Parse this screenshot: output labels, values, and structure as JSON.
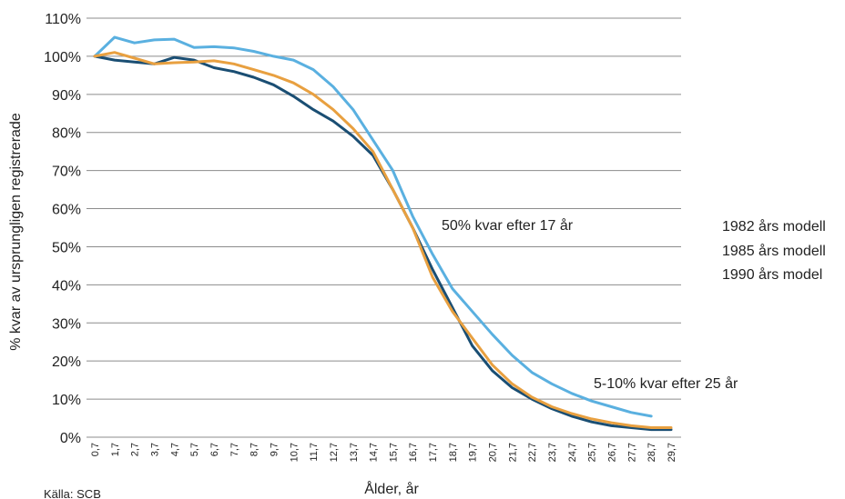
{
  "chart_data": {
    "type": "line",
    "title": "",
    "xlabel": "Ålder, år",
    "ylabel": "% kvar av ursprungligen registrerade",
    "ylim": [
      0,
      110
    ],
    "yticks": [
      "0%",
      "10%",
      "20%",
      "30%",
      "40%",
      "50%",
      "60%",
      "70%",
      "80%",
      "90%",
      "100%",
      "110%"
    ],
    "categories": [
      "0,7",
      "1,7",
      "2,7",
      "3,7",
      "4,7",
      "5,7",
      "6,7",
      "7,7",
      "8,7",
      "9,7",
      "10,7",
      "11,7",
      "12,7",
      "13,7",
      "14,7",
      "15,7",
      "16,7",
      "17,7",
      "18,7",
      "19,7",
      "20,7",
      "21,7",
      "22,7",
      "23,7",
      "24,7",
      "25,7",
      "26,7",
      "27,7",
      "28,7",
      "29,7"
    ],
    "grid": "horizontal",
    "legend_position": "right",
    "series": [
      {
        "name": "1982 års modell",
        "color": "#1a4e73",
        "values": [
          100,
          99,
          98.5,
          98,
          99.7,
          99,
          97,
          96,
          94.5,
          92.5,
          89.5,
          86,
          83,
          79,
          74,
          65,
          55,
          44,
          34,
          24,
          17.5,
          13,
          10,
          7.5,
          5.5,
          4,
          3,
          2.5,
          2,
          2
        ]
      },
      {
        "name": "1985 års modell",
        "color": "#e8a040",
        "values": [
          100,
          101,
          99.5,
          98,
          98.3,
          98.5,
          98.8,
          98,
          96.5,
          95,
          93,
          90,
          86,
          81,
          75,
          65,
          55,
          42,
          33,
          26,
          19,
          14,
          10.5,
          8,
          6.2,
          4.8,
          3.8,
          3,
          2.5,
          2.5
        ]
      },
      {
        "name": "1990 års model",
        "color": "#5ab0e0",
        "values": [
          100,
          105,
          103.5,
          104.3,
          104.5,
          102.3,
          102.5,
          102.2,
          101.3,
          100,
          99,
          96.5,
          92,
          86,
          78,
          70,
          58,
          48,
          39,
          33,
          27,
          21.5,
          17,
          14,
          11.5,
          9.5,
          8,
          6.5,
          5.5,
          null
        ]
      }
    ],
    "annotations": [
      "50% kvar efter 17 år",
      "5-10% kvar efter 25 år"
    ],
    "source": "Källa: SCB"
  }
}
